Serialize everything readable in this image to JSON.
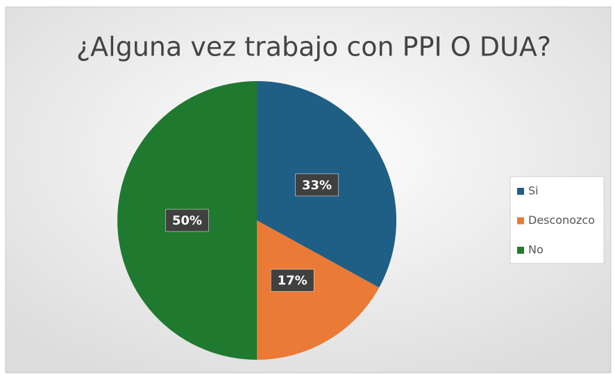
{
  "chart_data": {
    "type": "pie",
    "title": "¿Alguna vez trabajo con PPI O DUA?",
    "categories": [
      "Si",
      "Desconozco",
      "No"
    ],
    "values": [
      33,
      17,
      50
    ],
    "value_labels": [
      "33%",
      "17%",
      "50%"
    ],
    "colors": [
      "#1f5f86",
      "#ea7a35",
      "#1f7a2f"
    ],
    "legend": "right"
  }
}
